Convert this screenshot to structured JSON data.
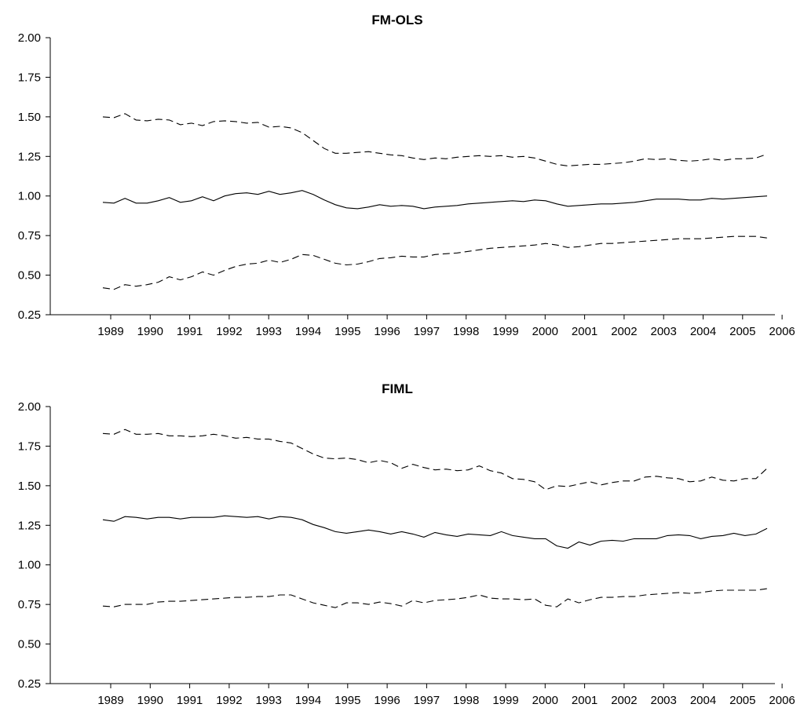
{
  "chart_data": [
    {
      "type": "line",
      "title": "FM-OLS",
      "xlabel": "",
      "ylabel": "",
      "ylim": [
        0.25,
        2.0
      ],
      "yticks": [
        "0.25",
        "0.50",
        "0.75",
        "1.00",
        "1.25",
        "1.50",
        "1.75",
        "2.00"
      ],
      "xticks": [
        "1989",
        "1990",
        "1991",
        "1992",
        "1993",
        "1994",
        "1995",
        "1996",
        "1997",
        "1998",
        "1999",
        "2000",
        "2001",
        "2002",
        "2003",
        "2004",
        "2005",
        "2006"
      ],
      "grid": false,
      "series": [
        {
          "style": "dashed",
          "values": [
            1.5,
            1.495,
            1.52,
            1.48,
            1.475,
            1.485,
            1.48,
            1.45,
            1.46,
            1.445,
            1.47,
            1.475,
            1.47,
            1.46,
            1.465,
            1.435,
            1.44,
            1.43,
            1.4,
            1.35,
            1.3,
            1.27,
            1.27,
            1.275,
            1.28,
            1.27,
            1.26,
            1.255,
            1.24,
            1.23,
            1.24,
            1.235,
            1.245,
            1.25,
            1.255,
            1.25,
            1.255,
            1.245,
            1.25,
            1.24,
            1.22,
            1.2,
            1.19,
            1.195,
            1.2,
            1.2,
            1.205,
            1.21,
            1.22,
            1.235,
            1.23,
            1.235,
            1.225,
            1.22,
            1.225,
            1.235,
            1.225,
            1.235,
            1.235,
            1.24,
            1.265
          ]
        },
        {
          "style": "solid",
          "values": [
            0.96,
            0.955,
            0.985,
            0.955,
            0.955,
            0.97,
            0.99,
            0.96,
            0.97,
            0.995,
            0.97,
            1.0,
            1.015,
            1.02,
            1.01,
            1.03,
            1.01,
            1.02,
            1.035,
            1.01,
            0.975,
            0.945,
            0.925,
            0.92,
            0.93,
            0.945,
            0.935,
            0.94,
            0.935,
            0.92,
            0.93,
            0.935,
            0.94,
            0.95,
            0.955,
            0.96,
            0.965,
            0.97,
            0.965,
            0.975,
            0.97,
            0.95,
            0.935,
            0.94,
            0.945,
            0.95,
            0.95,
            0.955,
            0.96,
            0.97,
            0.98,
            0.98,
            0.98,
            0.975,
            0.975,
            0.985,
            0.98,
            0.985,
            0.99,
            0.995,
            1.0
          ]
        },
        {
          "style": "dashed",
          "values": [
            0.42,
            0.41,
            0.44,
            0.43,
            0.44,
            0.455,
            0.49,
            0.47,
            0.49,
            0.52,
            0.5,
            0.53,
            0.555,
            0.57,
            0.575,
            0.595,
            0.58,
            0.6,
            0.63,
            0.625,
            0.6,
            0.575,
            0.565,
            0.57,
            0.585,
            0.605,
            0.61,
            0.62,
            0.615,
            0.615,
            0.63,
            0.635,
            0.64,
            0.65,
            0.66,
            0.67,
            0.675,
            0.68,
            0.685,
            0.69,
            0.7,
            0.69,
            0.675,
            0.68,
            0.69,
            0.7,
            0.7,
            0.705,
            0.71,
            0.715,
            0.72,
            0.725,
            0.73,
            0.73,
            0.73,
            0.735,
            0.74,
            0.745,
            0.745,
            0.745,
            0.735
          ]
        }
      ]
    },
    {
      "type": "line",
      "title": "FIML",
      "xlabel": "",
      "ylabel": "",
      "ylim": [
        0.25,
        2.0
      ],
      "yticks": [
        "0.25",
        "0.50",
        "0.75",
        "1.00",
        "1.25",
        "1.50",
        "1.75",
        "2.00"
      ],
      "xticks": [
        "1989",
        "1990",
        "1991",
        "1992",
        "1993",
        "1994",
        "1995",
        "1996",
        "1997",
        "1998",
        "1999",
        "2000",
        "2001",
        "2002",
        "2003",
        "2004",
        "2005",
        "2006"
      ],
      "grid": false,
      "series": [
        {
          "style": "dashed",
          "values": [
            1.83,
            1.825,
            1.855,
            1.825,
            1.825,
            1.83,
            1.815,
            1.815,
            1.81,
            1.815,
            1.825,
            1.815,
            1.8,
            1.805,
            1.795,
            1.795,
            1.78,
            1.77,
            1.735,
            1.7,
            1.675,
            1.67,
            1.675,
            1.665,
            1.645,
            1.66,
            1.645,
            1.61,
            1.635,
            1.615,
            1.6,
            1.605,
            1.595,
            1.6,
            1.625,
            1.595,
            1.58,
            1.545,
            1.54,
            1.525,
            1.475,
            1.5,
            1.495,
            1.51,
            1.525,
            1.505,
            1.52,
            1.53,
            1.53,
            1.555,
            1.56,
            1.55,
            1.545,
            1.525,
            1.53,
            1.555,
            1.535,
            1.53,
            1.545,
            1.545,
            1.61
          ]
        },
        {
          "style": "solid",
          "values": [
            1.285,
            1.275,
            1.305,
            1.3,
            1.29,
            1.3,
            1.3,
            1.29,
            1.3,
            1.3,
            1.3,
            1.31,
            1.305,
            1.3,
            1.305,
            1.29,
            1.305,
            1.3,
            1.285,
            1.255,
            1.235,
            1.21,
            1.2,
            1.21,
            1.22,
            1.21,
            1.195,
            1.21,
            1.195,
            1.175,
            1.205,
            1.19,
            1.18,
            1.195,
            1.19,
            1.185,
            1.21,
            1.185,
            1.175,
            1.165,
            1.165,
            1.12,
            1.105,
            1.145,
            1.125,
            1.15,
            1.155,
            1.15,
            1.165,
            1.165,
            1.165,
            1.185,
            1.19,
            1.185,
            1.165,
            1.18,
            1.185,
            1.2,
            1.185,
            1.195,
            1.23
          ]
        },
        {
          "style": "dashed",
          "values": [
            0.74,
            0.735,
            0.75,
            0.75,
            0.75,
            0.765,
            0.77,
            0.77,
            0.775,
            0.78,
            0.785,
            0.79,
            0.795,
            0.795,
            0.8,
            0.8,
            0.81,
            0.81,
            0.785,
            0.76,
            0.745,
            0.73,
            0.76,
            0.76,
            0.75,
            0.765,
            0.755,
            0.74,
            0.775,
            0.76,
            0.775,
            0.78,
            0.785,
            0.795,
            0.81,
            0.79,
            0.785,
            0.785,
            0.78,
            0.785,
            0.745,
            0.735,
            0.785,
            0.76,
            0.78,
            0.795,
            0.795,
            0.8,
            0.8,
            0.81,
            0.815,
            0.82,
            0.825,
            0.82,
            0.825,
            0.835,
            0.84,
            0.84,
            0.84,
            0.84,
            0.85
          ]
        }
      ]
    }
  ]
}
